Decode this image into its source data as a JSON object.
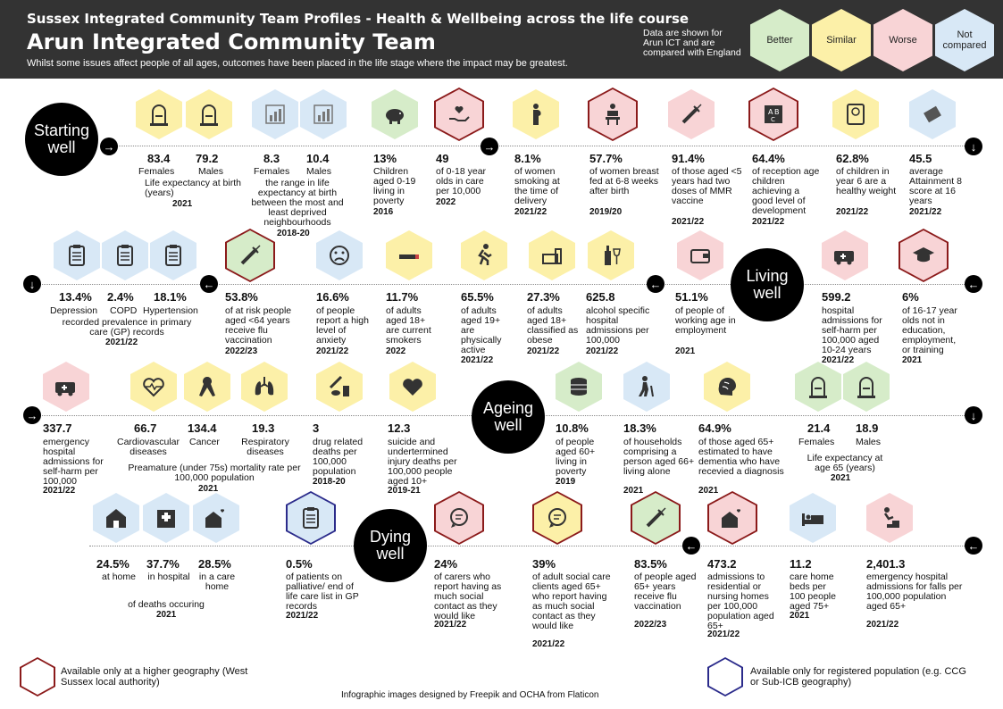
{
  "header": {
    "subtitle": "Sussex Integrated Community Team Profiles - Health & Wellbeing across the life course",
    "title": "Arun Integrated Community Team",
    "description": "Whilst some issues affect people of all ages, outcomes have been placed in the life stage where the impact may be greatest.",
    "note": "Data are shown for Arun ICT and are compared with England",
    "legend": [
      "Better",
      "Similar",
      "Worse",
      "Not compared"
    ]
  },
  "stages": {
    "starting": "Starting well",
    "living": "Living well",
    "ageing": "Ageing well",
    "dying": "Dying well"
  },
  "row1": {
    "le_f_val": "83.4",
    "le_f_lbl": "Females",
    "le_m_val": "79.2",
    "le_m_lbl": "Males",
    "le_lbl": "Life expectancy at birth (years)",
    "le_yr": "2021",
    "rng_f_val": "8.3",
    "rng_f_lbl": "Females",
    "rng_m_val": "10.4",
    "rng_m_lbl": "Males",
    "rng_lbl": "the range in life expectancy at birth between the most and least deprived neighbourhoods",
    "rng_yr": "2018-20",
    "pov_val": "13%",
    "pov_lbl": "Children aged 0-19 living in poverty",
    "pov_yr": "2016",
    "care_val": "49",
    "care_lbl": "of 0-18 year olds in care per 10,000",
    "care_yr": "2022",
    "smk_val": "8.1%",
    "smk_lbl": "of women smoking at the time of delivery",
    "smk_yr": "2021/22",
    "bf_val": "57.7%",
    "bf_lbl": "of women breast fed at 6-8 weeks after birth",
    "bf_yr": "2019/20",
    "mmr_val": "91.4%",
    "mmr_lbl": "of those aged <5 years had two doses of MMR vaccine",
    "mmr_yr": "2021/22",
    "dev_val": "64.4%",
    "dev_lbl": "of reception age children achieving a good level of development",
    "dev_yr": "2021/22",
    "wt_val": "62.8%",
    "wt_lbl": "of children in year 6 are a healthy weight",
    "wt_yr": "2021/22",
    "att_val": "45.5",
    "att_lbl": "average Attainment 8 score at 16 years",
    "att_yr": "2021/22"
  },
  "row2": {
    "dep_val": "13.4%",
    "dep_lbl": "Depression",
    "copd_val": "2.4%",
    "copd_lbl": "COPD",
    "hyp_val": "18.1%",
    "hyp_lbl": "Hypertension",
    "gp_lbl": "recorded prevalence in primary care (GP) records",
    "gp_yr": "2021/22",
    "flu_val": "53.8%",
    "flu_lbl": "of at risk people aged <64 years receive flu vaccination",
    "flu_yr": "2022/23",
    "anx_val": "16.6%",
    "anx_lbl": "of people report a high level of anxiety",
    "anx_yr": "2021/22",
    "smk_val": "11.7%",
    "smk_lbl": "of adults aged 18+ are current smokers",
    "smk_yr": "2022",
    "act_val": "65.5%",
    "act_lbl": "of adults aged 19+ are physically active",
    "act_yr": "2021/22",
    "ob_val": "27.3%",
    "ob_lbl": "of adults aged 18+ classified as obese",
    "ob_yr": "2021/22",
    "alc_val": "625.8",
    "alc_lbl": "alcohol specific hospital admissions per 100,000",
    "alc_yr": "2021/22",
    "emp_val": "51.1%",
    "emp_lbl": "of people of working age in employment",
    "emp_yr": "2021",
    "sh_val": "599.2",
    "sh_lbl": "hospital admissions for self-harm per 100,000 aged 10-24 years",
    "sh_yr": "2021/22",
    "neet_val": "6%",
    "neet_lbl": "of 16-17 year olds not in education, employment, or training",
    "neet_yr": "2021"
  },
  "row3": {
    "ed_val": "337.7",
    "ed_lbl": "emergency hospital admissions for self-harm per 100,000",
    "ed_yr": "2021/22",
    "cvd_val": "66.7",
    "cvd_lbl": "Cardiovascular diseases",
    "can_val": "134.4",
    "can_lbl": "Cancer",
    "resp_val": "19.3",
    "resp_lbl": "Respiratory diseases",
    "pm_lbl": "Preamature (under 75s) mortality rate per 100,000 population",
    "pm_yr": "2021",
    "drug_val": "3",
    "drug_lbl": "drug related deaths per 100,000 population",
    "drug_yr": "2018-20",
    "sui_val": "12.3",
    "sui_lbl": "suicide and undertermined injury deaths per 100,000 people aged 10+",
    "sui_yr": "2019-21",
    "pov_val": "10.8%",
    "pov_lbl": "of people aged 60+ living in poverty",
    "pov_yr": "2019",
    "alone_val": "18.3%",
    "alone_lbl": "of households comprising a person aged 66+ living alone",
    "alone_yr": "2021",
    "dem_val": "64.9%",
    "dem_lbl": "of those aged 65+ estimated to have dementia who have recevied a diagnosis",
    "dem_yr": "2021",
    "le65_f_val": "21.4",
    "le65_f_lbl": "Females",
    "le65_m_val": "18.9",
    "le65_m_lbl": "Males",
    "le65_lbl": "Life expectancy at age 65 (years)",
    "le65_yr": "2021"
  },
  "row4": {
    "home_val": "24.5%",
    "home_lbl": "at home",
    "hosp_val": "37.7%",
    "hosp_lbl": "in hospital",
    "ch_val": "28.5%",
    "ch_lbl": "in a care home",
    "deaths_lbl": "of deaths occuring",
    "deaths_yr": "2021",
    "pal_val": "0.5%",
    "pal_lbl": "of patients on palliative/ end of life care list in GP records",
    "pal_yr": "2021/22",
    "car_val": "24%",
    "car_lbl": "of carers who report having as much social contact as they would like",
    "car_yr": "2021/22",
    "sc_val": "39%",
    "sc_lbl": "of adult social care clients aged 65+ who report having as much social contact as they would like",
    "sc_yr": "2021/22",
    "flu_val": "83.5%",
    "flu_lbl": "of people aged 65+ years receive flu vaccination",
    "flu_yr": "2022/23",
    "res_val": "473.2",
    "res_lbl": "admissions to residential or nursing homes per 100,000 population aged 65+",
    "res_yr": "2021/22",
    "beds_val": "11.2",
    "beds_lbl": "care home beds per 100 people aged 75+",
    "beds_yr": "2021",
    "fall_val": "2,401.3",
    "fall_lbl": "emergency hospital admissions for falls per 100,000 population aged 65+",
    "fall_yr": "2021/22"
  },
  "footer": {
    "higher": "Available only at a higher geography (West Sussex local authority)",
    "credit": "Infographic images designed by Freepik and OCHA from Flaticon",
    "registered": "Available only for registered population (e.g. CCG or Sub-ICB geography)"
  },
  "colors": {
    "better": "#d6ecc9",
    "similar": "#fcf0a8",
    "worse": "#f8d4d6",
    "not_compared": "#d8e8f6",
    "header": "#333333"
  }
}
